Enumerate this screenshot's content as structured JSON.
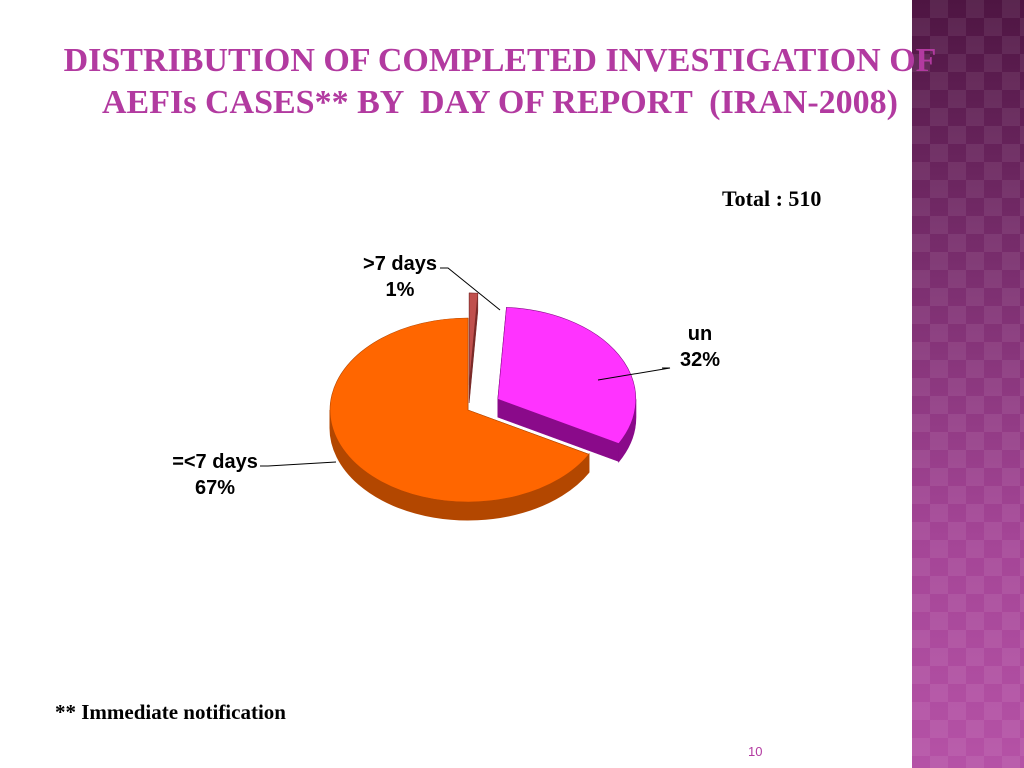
{
  "title_line1": "DISTRIBUTION OF COMPLETED INVESTIGATION OF",
  "title_line2": "AEFIs CASES** BY  DAY OF REPORT  (IRAN-2008)",
  "total_label": "Total : 510",
  "footnote": "** Immediate notification",
  "page_number": "10",
  "colors": {
    "title": "#b23aa0",
    "side_panel": "#8a3a7e"
  },
  "chart_data": {
    "type": "pie",
    "style": "3d-exploded",
    "slices": [
      {
        "name": ">7 days",
        "value": 1,
        "label_value": "1%",
        "color": "#c0504d",
        "side_color": "#7a2a28"
      },
      {
        "name": "un",
        "value": 32,
        "label_value": "32%",
        "color": "#ff33ff",
        "side_color": "#8a0a8a"
      },
      {
        "name": "=<7 days",
        "value": 67,
        "label_value": "67%",
        "color": "#ff6600",
        "side_color": "#b34700"
      }
    ]
  }
}
